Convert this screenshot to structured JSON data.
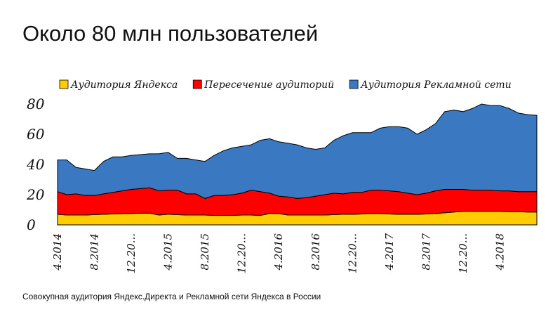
{
  "chart_data": {
    "type": "stacked_area",
    "title": "Около 80 млн пользователей",
    "footnote": "Совокупная аудитория Яндекс.Директа и Рекламной сети Яндекса в России",
    "categories": [
      "4.2014",
      null,
      null,
      null,
      "8.2014",
      null,
      null,
      null,
      "12.20...",
      null,
      null,
      null,
      "4.2015",
      null,
      null,
      null,
      "8.2015",
      null,
      null,
      null,
      "12.20...",
      null,
      null,
      null,
      "4.2016",
      null,
      null,
      null,
      "8.2016",
      null,
      null,
      null,
      "12.20...",
      null,
      null,
      null,
      "4.2017",
      null,
      null,
      null,
      "8.2017",
      null,
      null,
      null,
      "12.20...",
      null,
      null,
      null,
      "4.2018",
      null,
      null,
      null,
      null
    ],
    "series": [
      {
        "name": "Аудитория Яндекса",
        "color": "#ffcc00",
        "values": [
          7,
          6.5,
          6.5,
          6.5,
          6.8,
          7,
          7.2,
          7.4,
          7.6,
          7.7,
          7.8,
          6.5,
          7,
          6.8,
          6.5,
          6.5,
          6.5,
          6.3,
          6.3,
          6.3,
          6.5,
          6.5,
          6.3,
          7.5,
          7.5,
          6.5,
          6.5,
          6.5,
          6.5,
          6.5,
          6.8,
          7,
          7,
          7.2,
          7.5,
          7.5,
          7.2,
          7,
          7,
          7,
          7.2,
          7.5,
          8,
          8.5,
          9,
          9,
          9,
          9,
          9,
          8.8,
          8.7,
          8.5,
          8.5
        ]
      },
      {
        "name": "Пересечение аудиторий",
        "color": "#ff0000",
        "values": [
          15,
          13.5,
          14,
          13,
          12.7,
          13.5,
          14.3,
          15.1,
          15.9,
          16.3,
          16.7,
          16,
          16,
          16.2,
          14,
          14,
          11,
          13.2,
          13.2,
          13.7,
          14.5,
          16.5,
          15.7,
          13.5,
          11.5,
          12,
          11,
          11.5,
          12.5,
          13.5,
          14.2,
          13.5,
          14.5,
          14.3,
          15.5,
          15.5,
          15.3,
          15,
          14,
          13,
          13.8,
          15,
          15.5,
          15,
          14.5,
          14,
          14,
          14,
          13.5,
          13.7,
          13.3,
          13.5,
          13.5
        ]
      },
      {
        "name": "Аудитория Рекламной сети",
        "color": "#3a78c2",
        "values": [
          21,
          23,
          17.5,
          17.5,
          16.5,
          21.5,
          23.5,
          22.5,
          22.5,
          22.5,
          22.5,
          24.5,
          25,
          21,
          23.5,
          22.5,
          24.5,
          26.5,
          29.5,
          31,
          31,
          30,
          34,
          36,
          36,
          35.5,
          35.5,
          33,
          31,
          31,
          35,
          38.5,
          39.5,
          39.5,
          38,
          41,
          42.5,
          43,
          43,
          40,
          42,
          44.5,
          51.5,
          52.5,
          51.5,
          54,
          57,
          56,
          56.5,
          54.5,
          52,
          51,
          50.5
        ]
      }
    ],
    "ylim": [
      0,
      80
    ],
    "yticks": [
      0,
      20,
      40,
      60,
      80
    ]
  }
}
